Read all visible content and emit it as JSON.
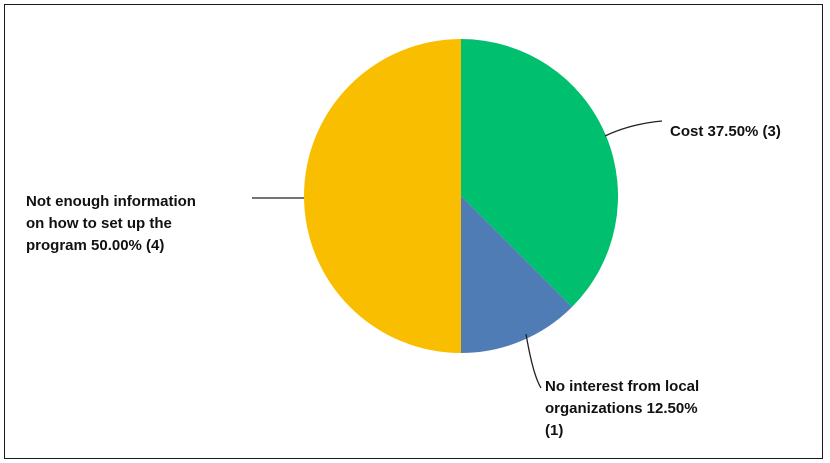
{
  "chart_data": {
    "type": "pie",
    "slices": [
      {
        "label": "Cost",
        "percent": "37.50%",
        "count": 3,
        "value": 37.5,
        "color": "#00BF6F"
      },
      {
        "label": "No interest from local organizations",
        "percent": "12.50%",
        "count": 1,
        "value": 12.5,
        "color": "#507CB6"
      },
      {
        "label": "Not enough information on how to set up the program",
        "percent": "50.00%",
        "count": 4,
        "value": 50.0,
        "color": "#F9BE00"
      }
    ],
    "data_labels": [
      "Cost 37.50% (3)",
      "No interest from local\norganizations 12.50%\n(1)",
      "Not enough information\non how to set up the\nprogram 50.00% (4)"
    ]
  }
}
